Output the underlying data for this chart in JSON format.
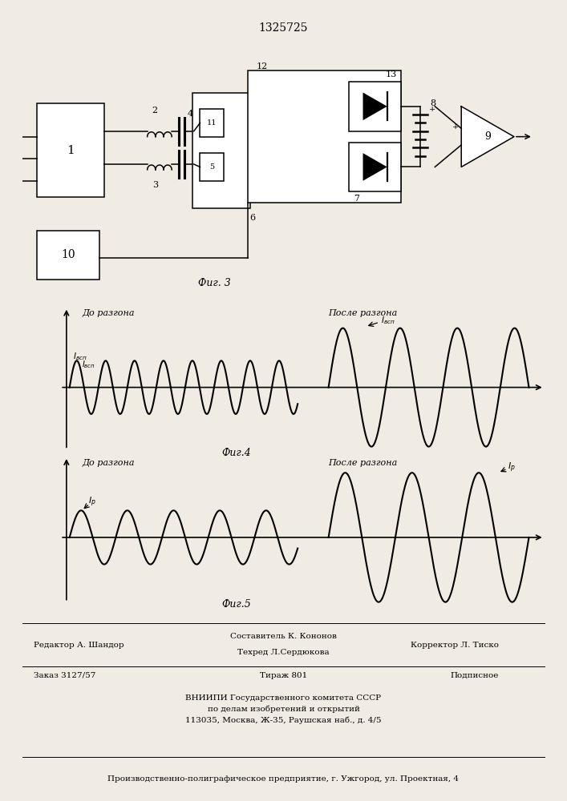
{
  "title": "1325725",
  "fig4_label": "Фиг.4",
  "fig5_label": "Фиг.5",
  "fig3_label": "Фиг. 3",
  "fig4_before": "До разгона",
  "fig4_after": "После разгона",
  "fig5_before": "До разгона",
  "fig5_after": "После разгона",
  "footer_editor": "Редактор А. Шандор",
  "footer_compiler": "Составитель К. Кононов",
  "footer_tech": "Техред Л.Сердюкова",
  "footer_corrector": "Корректор Л. Тиско",
  "footer_order": "Заказ 3127/57",
  "footer_tirazh": "Тираж 801",
  "footer_podpisnoe": "Подписное",
  "footer_vniip": "ВНИИПИ Государственного комитета СССР",
  "footer_po": "по делам изобретений и открытий",
  "footer_addr": "113035, Москва, Ж-35, Раушская наб., д. 4/5",
  "footer_proizv": "Производственно-полиграфическое предприятие, г. Ужгород, ул. Проектная, 4",
  "bg_color": "#f0ece4"
}
